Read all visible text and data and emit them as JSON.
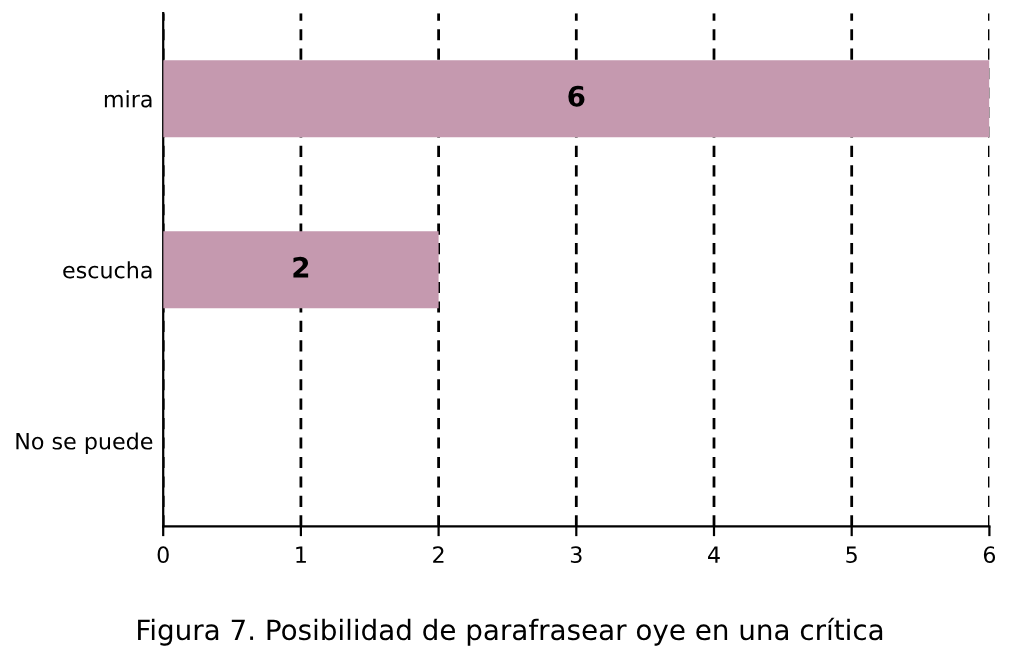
{
  "chart_data": {
    "type": "bar",
    "orientation": "horizontal",
    "categories": [
      "mira",
      "escucha",
      "No se puede"
    ],
    "values": [
      6,
      2,
      0
    ],
    "value_labels": [
      "6",
      "2",
      null
    ],
    "color": "#c599af",
    "xlim": [
      0,
      6
    ],
    "xticks": [
      0,
      1,
      2,
      3,
      4,
      5,
      6
    ],
    "grid": "x",
    "annotations": [
      "Figura 7. Posibilidad de parafrasear oye en una crítica"
    ]
  }
}
